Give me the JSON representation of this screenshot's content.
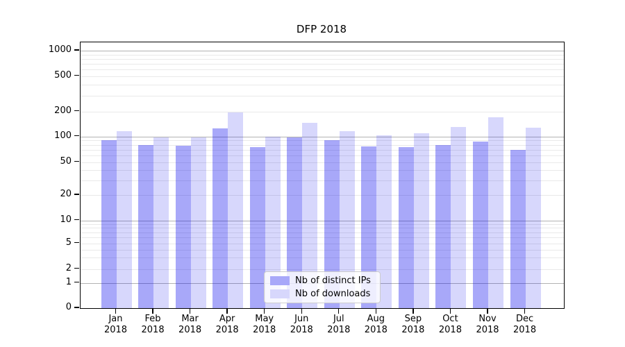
{
  "title": "DFP 2018",
  "chart_data": {
    "type": "bar",
    "title": "DFP 2018",
    "categories": [
      "Jan 2018",
      "Feb 2018",
      "Mar 2018",
      "Apr 2018",
      "May 2018",
      "Jun 2018",
      "Jul 2018",
      "Aug 2018",
      "Sep 2018",
      "Oct 2018",
      "Nov 2018",
      "Dec 2018"
    ],
    "series": [
      {
        "name": "Nb of distinct IPs",
        "color": "rgba(0,0,238,0.34)",
        "swatch_color": "#a8a8f9",
        "values": [
          90,
          80,
          78,
          125,
          75,
          98,
          91,
          76,
          75,
          80,
          87,
          70
        ]
      },
      {
        "name": "Nb of downloads",
        "color": "rgba(0,0,238,0.155)",
        "swatch_color": "#d7d7fc",
        "values": [
          115,
          97,
          98,
          195,
          100,
          145,
          115,
          103,
          110,
          130,
          170,
          128
        ]
      }
    ],
    "xlabel": "",
    "ylabel": "",
    "yscale": "symlog",
    "ylim": [
      0,
      1300
    ],
    "yticks": [
      1000,
      500,
      200,
      100,
      50,
      20,
      10,
      5,
      2,
      1,
      0
    ],
    "grid": {
      "major": true,
      "minor": true
    },
    "legend_position": "lower-center"
  },
  "colors": {
    "grid_major": "#b2b2b2",
    "grid_minor": "#e9e9e9",
    "spine": "#000000",
    "legend_border": "#cccccc",
    "legend_bg": "rgba(255,255,255,0.8)"
  }
}
